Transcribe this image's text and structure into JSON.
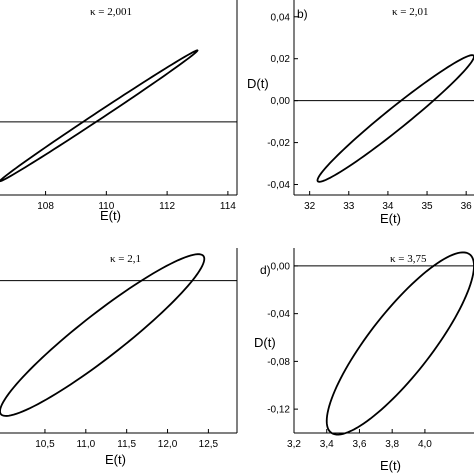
{
  "chart_data": [
    {
      "type": "line",
      "panel_tag": "",
      "title": "κ = 2,001",
      "xlabel": "E(t)",
      "ylabel": "",
      "xlim": [
        106.5,
        114.3
      ],
      "ylim": [
        -0.042,
        0.07
      ],
      "x_ticks": [
        "108",
        "110",
        "112",
        "114"
      ],
      "x_tick_values": [
        108,
        110,
        112,
        114
      ],
      "y_ticks": [],
      "y_tick_values": [],
      "reference_line_y": 0,
      "grid": false,
      "legend": "none",
      "loop": {
        "x_min": 106.5,
        "x_max": 113.0,
        "y_at_x_min": -0.034,
        "y_at_x_max": 0.041,
        "x_center": 109.7,
        "y_center": 0.0,
        "half_width_y": 0.0025
      }
    },
    {
      "type": "line",
      "panel_tag": "b)",
      "title": "κ = 2,01",
      "xlabel": "E(t)",
      "ylabel": "D(t)",
      "xlim": [
        31.6,
        36.2
      ],
      "ylim": [
        -0.045,
        0.048
      ],
      "x_ticks": [
        "32",
        "33",
        "34",
        "35",
        "36"
      ],
      "x_tick_values": [
        32,
        33,
        34,
        35,
        36
      ],
      "y_ticks": [
        "0,04",
        "0,02",
        "0,00",
        "-0,02",
        "-0,04"
      ],
      "y_tick_values": [
        0.04,
        0.02,
        0.0,
        -0.02,
        -0.04
      ],
      "reference_line_y": 0,
      "grid": false,
      "legend": "none",
      "loop": {
        "x_min": 32.2,
        "x_max": 36.2,
        "y_at_x_min": -0.038,
        "y_at_x_max": 0.021,
        "x_center": 34.8,
        "y_center": 0.0,
        "half_width_y": 0.0065
      }
    },
    {
      "type": "line",
      "panel_tag": "",
      "title": "κ = 2,1",
      "xlabel": "E(t)",
      "ylabel": "",
      "xlim": [
        9.95,
        12.85
      ],
      "ylim": [
        -0.14,
        0.03
      ],
      "x_ticks": [
        "10,5",
        "11,0",
        "11,5",
        "12,0",
        "12,5"
      ],
      "x_tick_values": [
        10.5,
        11.0,
        11.5,
        12.0,
        12.5
      ],
      "y_ticks": [],
      "y_tick_values": [],
      "reference_line_y": 0,
      "grid": false,
      "legend": "none",
      "loop": {
        "x_min": 9.95,
        "x_max": 12.45,
        "y_at_x_min": -0.12,
        "y_at_x_max": 0.02,
        "x_center": 11.2,
        "y_center": -0.05,
        "half_width_y": 0.025
      }
    },
    {
      "type": "line",
      "panel_tag": "d)",
      "title": "κ = 3,75",
      "xlabel": "E(t)",
      "ylabel": "D(t)",
      "xlim": [
        3.2,
        4.3
      ],
      "ylim": [
        -0.14,
        0.015
      ],
      "x_ticks": [
        "3,2",
        "3,4",
        "3,6",
        "3,8",
        "4,0"
      ],
      "x_tick_values": [
        3.2,
        3.4,
        3.6,
        3.8,
        4.0
      ],
      "y_ticks": [
        "0,00",
        "-0,04",
        "-0,08",
        "-0,12"
      ],
      "y_tick_values": [
        0.0,
        -0.04,
        -0.08,
        -0.12
      ],
      "reference_line_y": 0,
      "grid": false,
      "legend": "none",
      "loop": {
        "x_min": 3.4,
        "x_max": 4.3,
        "y_at_x_min": -0.13,
        "y_at_x_max": 0.0,
        "x_center": 3.85,
        "y_center": -0.065,
        "half_width_y": 0.04
      }
    }
  ]
}
